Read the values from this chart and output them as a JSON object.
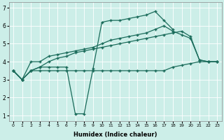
{
  "xlabel": "Humidex (Indice chaleur)",
  "xlim": [
    -0.5,
    23.5
  ],
  "ylim": [
    0.7,
    7.3
  ],
  "xticks": [
    0,
    1,
    2,
    3,
    4,
    5,
    6,
    7,
    8,
    9,
    10,
    11,
    12,
    13,
    14,
    15,
    16,
    17,
    18,
    19,
    20,
    21,
    22,
    23
  ],
  "yticks": [
    1,
    2,
    3,
    4,
    5,
    6,
    7
  ],
  "bg_color": "#cceee8",
  "line_color": "#1a6b5a",
  "line1_x": [
    0,
    1,
    2,
    3,
    4,
    5,
    6,
    7,
    8,
    9,
    10,
    11,
    12,
    13,
    14,
    15,
    16,
    17,
    18,
    19,
    20,
    21,
    22,
    23
  ],
  "line1_y": [
    3.5,
    3.0,
    3.5,
    3.5,
    3.5,
    3.5,
    3.5,
    3.5,
    3.5,
    3.5,
    3.5,
    3.5,
    3.5,
    3.5,
    3.5,
    3.5,
    3.5,
    3.5,
    3.7,
    3.8,
    3.9,
    4.0,
    4.0,
    4.0
  ],
  "line2_x": [
    0,
    1,
    2,
    3,
    4,
    5,
    6,
    7,
    8,
    9,
    10,
    11,
    12,
    13,
    14,
    15,
    16,
    17,
    18,
    19,
    20,
    21,
    22,
    23
  ],
  "line2_y": [
    3.5,
    3.0,
    3.5,
    3.7,
    4.0,
    4.2,
    4.3,
    4.5,
    4.6,
    4.7,
    4.8,
    4.9,
    5.0,
    5.1,
    5.2,
    5.3,
    5.4,
    5.5,
    5.6,
    5.7,
    5.4,
    4.1,
    4.0,
    4.0
  ],
  "line3_x": [
    0,
    1,
    2,
    3,
    4,
    5,
    6,
    7,
    8,
    9,
    10,
    11,
    12,
    13,
    14,
    15,
    16,
    17,
    18,
    19,
    20,
    21,
    22,
    23
  ],
  "line3_y": [
    3.5,
    3.0,
    4.0,
    4.0,
    4.3,
    4.4,
    4.5,
    4.6,
    4.7,
    4.8,
    5.0,
    5.2,
    5.3,
    5.4,
    5.5,
    5.6,
    5.8,
    6.0,
    5.7,
    5.5,
    5.3,
    4.1,
    4.0,
    4.0
  ],
  "line4_x": [
    0,
    1,
    2,
    3,
    4,
    5,
    6,
    7,
    8,
    9,
    10,
    11,
    12,
    13,
    14,
    15,
    16,
    17,
    18
  ],
  "line4_y": [
    3.5,
    3.0,
    3.5,
    3.7,
    3.7,
    3.7,
    3.7,
    1.1,
    1.1,
    3.6,
    6.2,
    6.3,
    6.3,
    6.4,
    6.5,
    6.6,
    6.8,
    6.3,
    5.8
  ]
}
